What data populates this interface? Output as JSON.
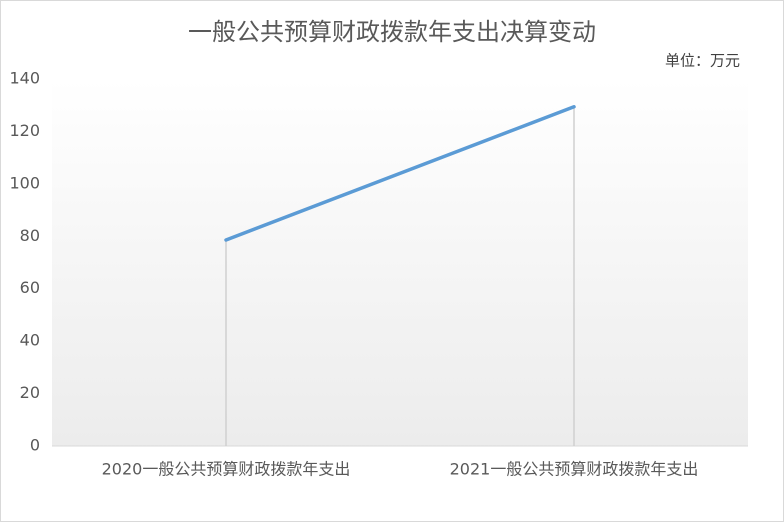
{
  "chart_data": {
    "type": "line",
    "title": "一般公共预算财政拨款年支出决算变动",
    "annotation": "单位：万元",
    "categories": [
      "2020一般公共预算财政拨款年支出",
      "2021一般公共预算财政拨款年支出"
    ],
    "values": [
      78.6,
      129.4
    ],
    "color": "#5b9bd5",
    "drop_lines": true,
    "ylim": [
      0,
      140
    ],
    "yticks": [
      0,
      20,
      40,
      60,
      80,
      100,
      120,
      140
    ],
    "grid": false
  }
}
